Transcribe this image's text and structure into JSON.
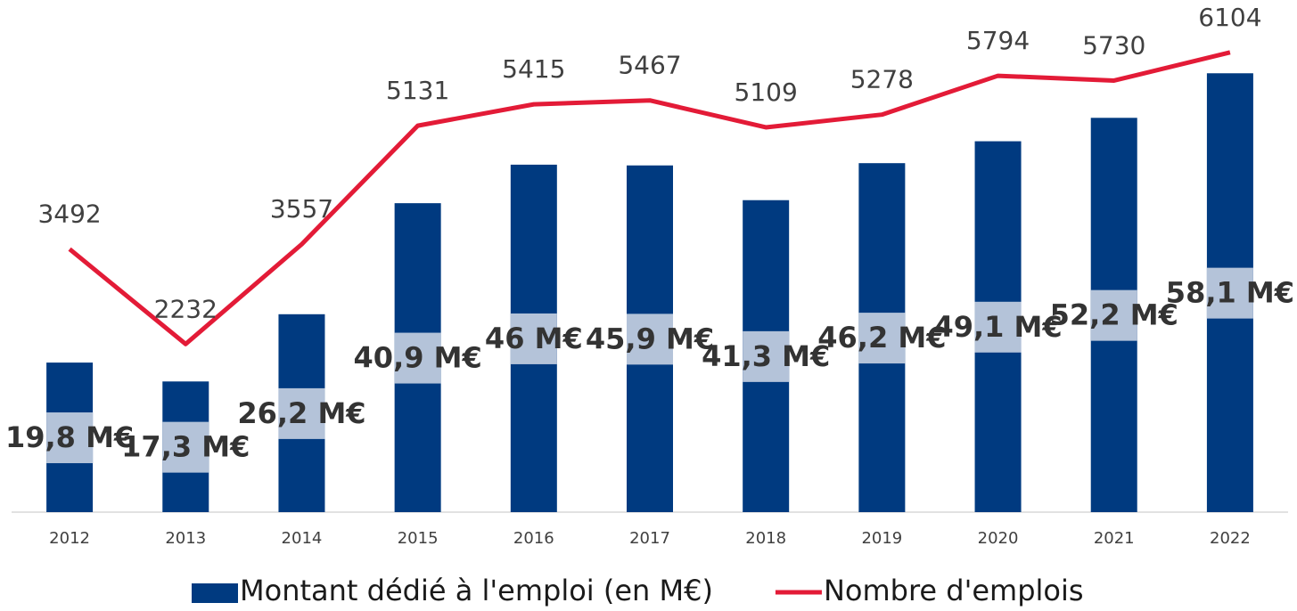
{
  "chart_data": {
    "type": "bar-line",
    "categories": [
      "2012",
      "2013",
      "2014",
      "2015",
      "2016",
      "2017",
      "2018",
      "2019",
      "2020",
      "2021",
      "2022"
    ],
    "series": [
      {
        "name": "Montant dédié à l'emploi (en M€)",
        "type": "bar",
        "axis": "y",
        "color": "#003a80",
        "values": [
          19.8,
          17.3,
          26.2,
          40.9,
          46,
          45.9,
          41.3,
          46.2,
          49.1,
          52.2,
          58.1
        ],
        "value_labels": [
          "19,8 M€",
          "17,3 M€",
          "26,2 M€",
          "40,9 M€",
          "46 M€",
          "45,9 M€",
          "41,3 M€",
          "46,2 M€",
          "49,1 M€",
          "52,2 M€",
          "58,1 M€"
        ]
      },
      {
        "name": "Nombre d'emplois",
        "type": "line",
        "axis": "y2",
        "color": "#e31b37",
        "values": [
          3492,
          2232,
          3557,
          5131,
          5415,
          5467,
          5109,
          5278,
          5794,
          5730,
          6104
        ]
      }
    ],
    "ylim": [
      0,
      67.8
    ],
    "y2lim": [
      0,
      6800
    ],
    "legend": "bottom"
  }
}
